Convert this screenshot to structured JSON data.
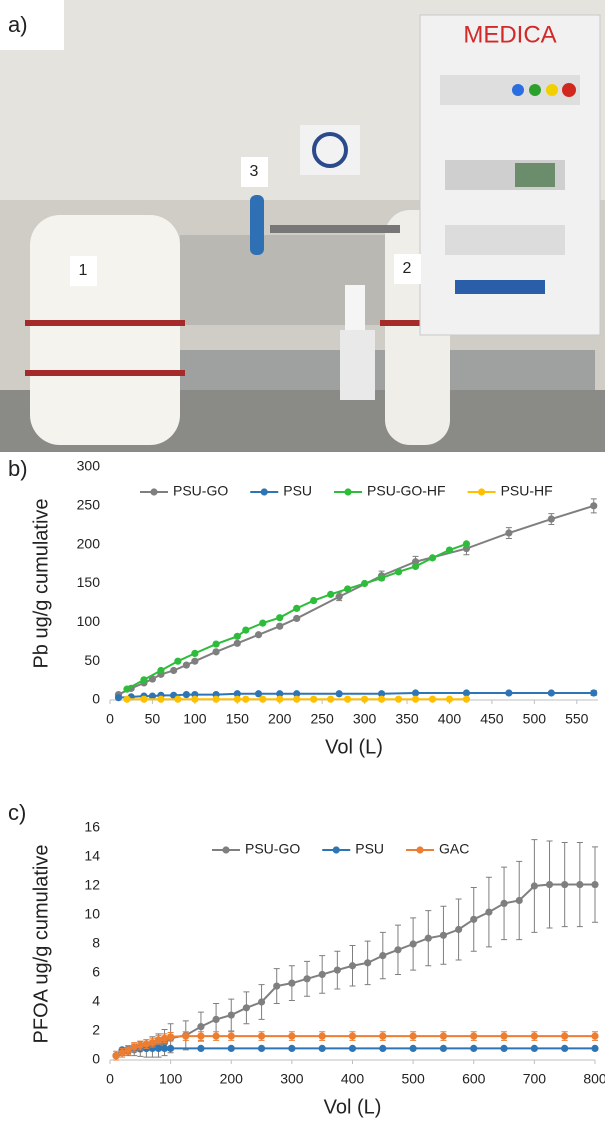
{
  "photo": {
    "label": "a)",
    "sign": "MEDICA",
    "markers": [
      "1",
      "2",
      "3"
    ]
  },
  "chart_data": [
    {
      "type": "line",
      "label": "b)",
      "y_label": "Pb ug/g cumulative",
      "x_label": "Vol (L)",
      "xlim": [
        0,
        575
      ],
      "xticks": [
        0,
        50,
        100,
        150,
        200,
        250,
        300,
        350,
        400,
        450,
        500,
        550
      ],
      "ylim": [
        0,
        300
      ],
      "yticks": [
        0,
        50,
        100,
        150,
        200,
        250,
        300
      ],
      "grid": false,
      "legend": "top",
      "series": [
        {
          "name": "PSU-GO",
          "color": "#7f7f7f",
          "x": [
            10,
            25,
            40,
            50,
            60,
            75,
            90,
            100,
            125,
            150,
            175,
            200,
            220,
            270,
            320,
            360,
            420,
            470,
            520,
            570
          ],
          "values": [
            7,
            15,
            22,
            27,
            33,
            38,
            45,
            50,
            62,
            73,
            84,
            95,
            105,
            133,
            160,
            178,
            195,
            215,
            233,
            250
          ],
          "errors": [
            2,
            2,
            2,
            2,
            2,
            2,
            2,
            2,
            2,
            2,
            2,
            2,
            2,
            5,
            6,
            7,
            8,
            7,
            7,
            9
          ]
        },
        {
          "name": "PSU",
          "color": "#2e75b6",
          "x": [
            10,
            25,
            40,
            50,
            60,
            75,
            90,
            100,
            125,
            150,
            175,
            200,
            220,
            270,
            320,
            360,
            420,
            470,
            520,
            570
          ],
          "values": [
            3,
            4,
            5,
            5,
            6,
            6,
            7,
            7,
            7,
            8,
            8,
            8,
            8,
            8,
            8,
            9,
            9,
            9,
            9,
            9
          ],
          "errors": [
            1,
            1,
            1,
            1,
            1,
            1,
            1,
            1,
            1,
            1,
            1,
            1,
            1,
            1,
            2,
            2,
            2,
            2,
            2,
            3
          ]
        },
        {
          "name": "PSU-GO-HF",
          "color": "#2dbd3a",
          "x": [
            20,
            40,
            60,
            80,
            100,
            125,
            150,
            160,
            180,
            200,
            220,
            240,
            260,
            280,
            300,
            320,
            340,
            360,
            380,
            400,
            420
          ],
          "values": [
            14,
            26,
            38,
            50,
            60,
            72,
            82,
            90,
            99,
            106,
            118,
            128,
            136,
            143,
            150,
            157,
            165,
            172,
            183,
            193,
            201
          ]
        },
        {
          "name": "PSU-HF",
          "color": "#ffc000",
          "x": [
            20,
            40,
            60,
            80,
            100,
            125,
            150,
            160,
            180,
            200,
            220,
            240,
            260,
            280,
            300,
            320,
            340,
            360,
            380,
            400,
            420
          ],
          "values": [
            1,
            1,
            1,
            1,
            1,
            1,
            1,
            1,
            1,
            1,
            1,
            1,
            1,
            1,
            1,
            1,
            1,
            1,
            1,
            1,
            1
          ]
        }
      ]
    },
    {
      "type": "line",
      "label": "c)",
      "y_label": "PFOA ug/g cumulative",
      "x_label": "Vol (L)",
      "xlim": [
        0,
        800
      ],
      "xticks": [
        0,
        100,
        200,
        300,
        400,
        500,
        600,
        700,
        800
      ],
      "ylim": [
        0,
        16
      ],
      "yticks": [
        0,
        2,
        4,
        6,
        8,
        10,
        12,
        14,
        16
      ],
      "grid": false,
      "legend": "top",
      "series": [
        {
          "name": "PSU-GO",
          "color": "#7f7f7f",
          "x": [
            10,
            20,
            30,
            40,
            50,
            60,
            70,
            80,
            90,
            100,
            125,
            150,
            175,
            200,
            225,
            250,
            275,
            300,
            325,
            350,
            375,
            400,
            425,
            450,
            475,
            500,
            525,
            550,
            575,
            600,
            625,
            650,
            675,
            700,
            725,
            750,
            775,
            800
          ],
          "values": [
            0.3,
            0.5,
            0.6,
            0.7,
            0.75,
            0.8,
            0.9,
            1.0,
            1.2,
            1.5,
            1.7,
            2.3,
            2.8,
            3.1,
            3.6,
            4.0,
            5.1,
            5.3,
            5.6,
            5.9,
            6.2,
            6.5,
            6.7,
            7.2,
            7.6,
            8.0,
            8.4,
            8.6,
            9.0,
            9.7,
            10.2,
            10.8,
            11.0,
            12.0,
            12.1,
            12.1,
            12.1,
            12.1
          ],
          "errors": [
            0.1,
            0.2,
            0.3,
            0.4,
            0.5,
            0.6,
            0.7,
            0.8,
            0.9,
            1.0,
            1.0,
            1.0,
            1.1,
            1.1,
            1.1,
            1.2,
            1.2,
            1.2,
            1.2,
            1.3,
            1.3,
            1.4,
            1.5,
            1.6,
            1.7,
            1.8,
            1.9,
            2.0,
            2.1,
            2.2,
            2.4,
            2.5,
            2.7,
            3.2,
            3.0,
            2.9,
            2.9,
            2.6
          ]
        },
        {
          "name": "PSU",
          "color": "#2e75b6",
          "x": [
            10,
            20,
            30,
            40,
            50,
            60,
            70,
            80,
            90,
            100,
            150,
            200,
            250,
            300,
            350,
            400,
            450,
            500,
            550,
            600,
            650,
            700,
            750,
            800
          ],
          "values": [
            0.3,
            0.7,
            0.75,
            0.8,
            0.8,
            0.8,
            0.8,
            0.8,
            0.8,
            0.8,
            0.8,
            0.8,
            0.8,
            0.8,
            0.8,
            0.8,
            0.8,
            0.8,
            0.8,
            0.8,
            0.8,
            0.8,
            0.8,
            0.8
          ]
        },
        {
          "name": "GAC",
          "color": "#ed7d31",
          "x": [
            10,
            20,
            30,
            40,
            50,
            60,
            70,
            80,
            90,
            100,
            125,
            150,
            175,
            200,
            250,
            300,
            350,
            400,
            450,
            500,
            550,
            600,
            650,
            700,
            750,
            800
          ],
          "values": [
            0.3,
            0.5,
            0.7,
            0.9,
            1.0,
            1.1,
            1.2,
            1.4,
            1.5,
            1.6,
            1.65,
            1.65,
            1.65,
            1.65,
            1.65,
            1.65,
            1.65,
            1.65,
            1.65,
            1.65,
            1.65,
            1.65,
            1.65,
            1.65,
            1.65,
            1.65
          ],
          "errors": [
            0.3,
            0.3,
            0.3,
            0.3,
            0.3,
            0.3,
            0.3,
            0.3,
            0.3,
            0.3,
            0.3,
            0.3,
            0.3,
            0.3,
            0.3,
            0.3,
            0.3,
            0.3,
            0.3,
            0.3,
            0.3,
            0.3,
            0.3,
            0.3,
            0.3,
            0.3
          ]
        }
      ]
    }
  ]
}
